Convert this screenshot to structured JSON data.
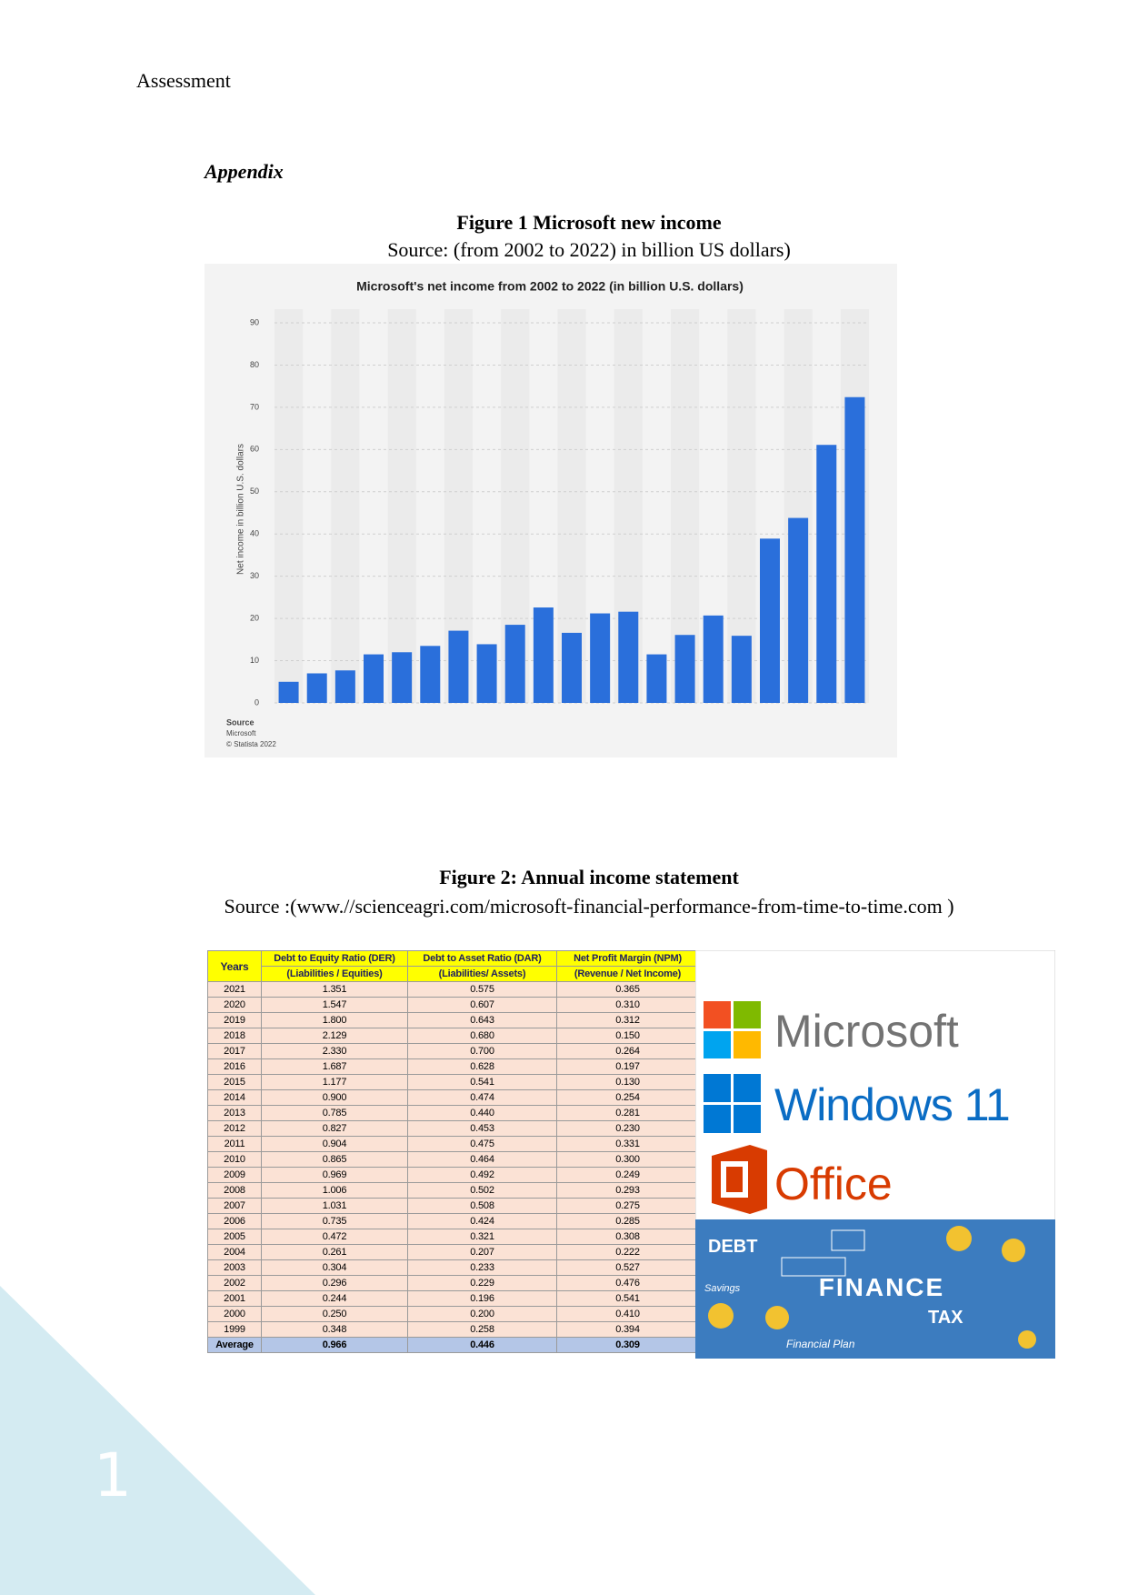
{
  "header": {
    "title": "Assessment"
  },
  "appendix": "Appendix",
  "figure1": {
    "caption": "Figure 1 Microsoft new income",
    "source": "Source: (from 2002 to 2022) in billion US dollars)"
  },
  "chart_data": {
    "type": "bar",
    "title": "Microsoft's net income from 2002 to 2022 (in billion U.S. dollars)",
    "y_label": "Net income in billion U.S. dollars",
    "values": [
      5.0,
      7.0,
      7.7,
      11.5,
      12.0,
      13.5,
      17.1,
      13.9,
      18.5,
      22.6,
      16.6,
      21.2,
      21.6,
      11.5,
      16.1,
      20.7,
      15.9,
      38.9,
      43.8,
      61.1,
      72.4
    ],
    "color": "#2a6fdb",
    "ylim": [
      0,
      90
    ],
    "yticks": [
      0,
      10,
      20,
      30,
      40,
      50,
      60,
      70,
      80,
      90
    ],
    "grid": true,
    "source_lines": [
      "Source",
      "Microsoft",
      "© Statista 2022"
    ]
  },
  "figure2": {
    "caption": "Figure 2: Annual income statement",
    "source": "Source :(www.//scienceagri.com/microsoft-financial-performance-from-time-to-time.com )",
    "table": {
      "header": [
        "Years",
        "Debt to Equity Ratio (DER)",
        "Debt to Asset Ratio (DAR)",
        "Net Profit Margin (NPM)"
      ],
      "subheader": [
        "(Liabilities / Equities)",
        "(Liabilities/ Assets)",
        "(Revenue / Net Income)"
      ],
      "rows": [
        [
          "2021",
          "1.351",
          "0.575",
          "0.365"
        ],
        [
          "2020",
          "1.547",
          "0.607",
          "0.310"
        ],
        [
          "2019",
          "1.800",
          "0.643",
          "0.312"
        ],
        [
          "2018",
          "2.129",
          "0.680",
          "0.150"
        ],
        [
          "2017",
          "2.330",
          "0.700",
          "0.264"
        ],
        [
          "2016",
          "1.687",
          "0.628",
          "0.197"
        ],
        [
          "2015",
          "1.177",
          "0.541",
          "0.130"
        ],
        [
          "2014",
          "0.900",
          "0.474",
          "0.254"
        ],
        [
          "2013",
          "0.785",
          "0.440",
          "0.281"
        ],
        [
          "2012",
          "0.827",
          "0.453",
          "0.230"
        ],
        [
          "2011",
          "0.904",
          "0.475",
          "0.331"
        ],
        [
          "2010",
          "0.865",
          "0.464",
          "0.300"
        ],
        [
          "2009",
          "0.969",
          "0.492",
          "0.249"
        ],
        [
          "2008",
          "1.006",
          "0.502",
          "0.293"
        ],
        [
          "2007",
          "1.031",
          "0.508",
          "0.275"
        ],
        [
          "2006",
          "0.735",
          "0.424",
          "0.285"
        ],
        [
          "2005",
          "0.472",
          "0.321",
          "0.308"
        ],
        [
          "2004",
          "0.261",
          "0.207",
          "0.222"
        ],
        [
          "2003",
          "0.304",
          "0.233",
          "0.527"
        ],
        [
          "2002",
          "0.296",
          "0.229",
          "0.476"
        ],
        [
          "2001",
          "0.244",
          "0.196",
          "0.541"
        ],
        [
          "2000",
          "0.250",
          "0.200",
          "0.410"
        ],
        [
          "1999",
          "0.348",
          "0.258",
          "0.394"
        ]
      ],
      "average": [
        "Average",
        "0.966",
        "0.446",
        "0.309"
      ]
    },
    "image_texts": {
      "microsoft": "Microsoft",
      "windows": "Windows 11",
      "office": "Office",
      "debt": "DEBT",
      "finance": "FINANCE",
      "tax": "TAX",
      "savings": "Savings",
      "plan": "Financial Plan"
    }
  },
  "page_number": "1"
}
